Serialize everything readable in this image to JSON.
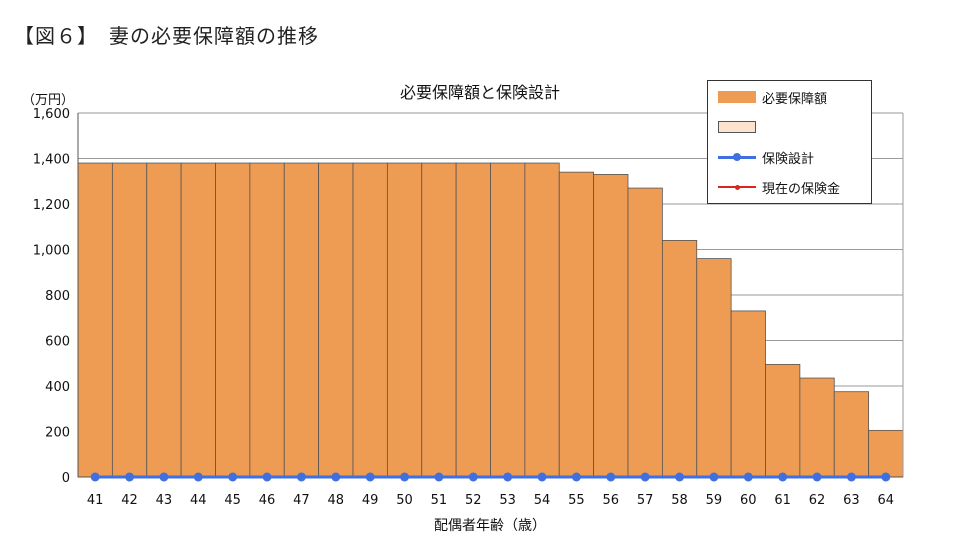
{
  "figure_title": "【図６】　妻の必要保障額の推移",
  "colors": {
    "bar_fill": "#EE9C53",
    "bar_stroke": "#555555",
    "empty_swatch": "#FBE3CF",
    "insurance_line": "#3F6FE0",
    "current_line": "#D6281F",
    "grid": "#9A9A9A"
  },
  "legend": {
    "items": [
      "必要保障額",
      "",
      "保険設計",
      "現在の保険金"
    ]
  },
  "chart_data": {
    "type": "bar",
    "title": "必要保障額と保険設計",
    "unit_label": "（万円）",
    "xlabel": "配偶者年齢（歳）",
    "ylabel": "",
    "ylim": [
      0,
      1600
    ],
    "yticks": [
      0,
      200,
      400,
      600,
      800,
      1000,
      1200,
      1400,
      1600
    ],
    "ytick_labels": [
      "0",
      "200",
      "400",
      "600",
      "800",
      "1,000",
      "1,200",
      "1,400",
      "1,600"
    ],
    "categories": [
      "41",
      "42",
      "43",
      "44",
      "45",
      "46",
      "47",
      "48",
      "49",
      "50",
      "51",
      "52",
      "53",
      "54",
      "55",
      "56",
      "57",
      "58",
      "59",
      "60",
      "61",
      "62",
      "63",
      "64"
    ],
    "grid": true,
    "legend_position": "top-right",
    "series": [
      {
        "name": "必要保障額",
        "type": "bar",
        "values": [
          1380,
          1380,
          1380,
          1380,
          1380,
          1380,
          1380,
          1380,
          1380,
          1380,
          1380,
          1380,
          1380,
          1380,
          1340,
          1330,
          1270,
          1040,
          960,
          730,
          495,
          435,
          375,
          205
        ]
      },
      {
        "name": "保険設計",
        "type": "line",
        "values": [
          0,
          0,
          0,
          0,
          0,
          0,
          0,
          0,
          0,
          0,
          0,
          0,
          0,
          0,
          0,
          0,
          0,
          0,
          0,
          0,
          0,
          0,
          0,
          0
        ]
      },
      {
        "name": "現在の保険金",
        "type": "line",
        "values": [
          0,
          0,
          0,
          0,
          0,
          0,
          0,
          0,
          0,
          0,
          0,
          0,
          0,
          0,
          0,
          0,
          0,
          0,
          0,
          0,
          0,
          0,
          0,
          0
        ]
      }
    ]
  }
}
